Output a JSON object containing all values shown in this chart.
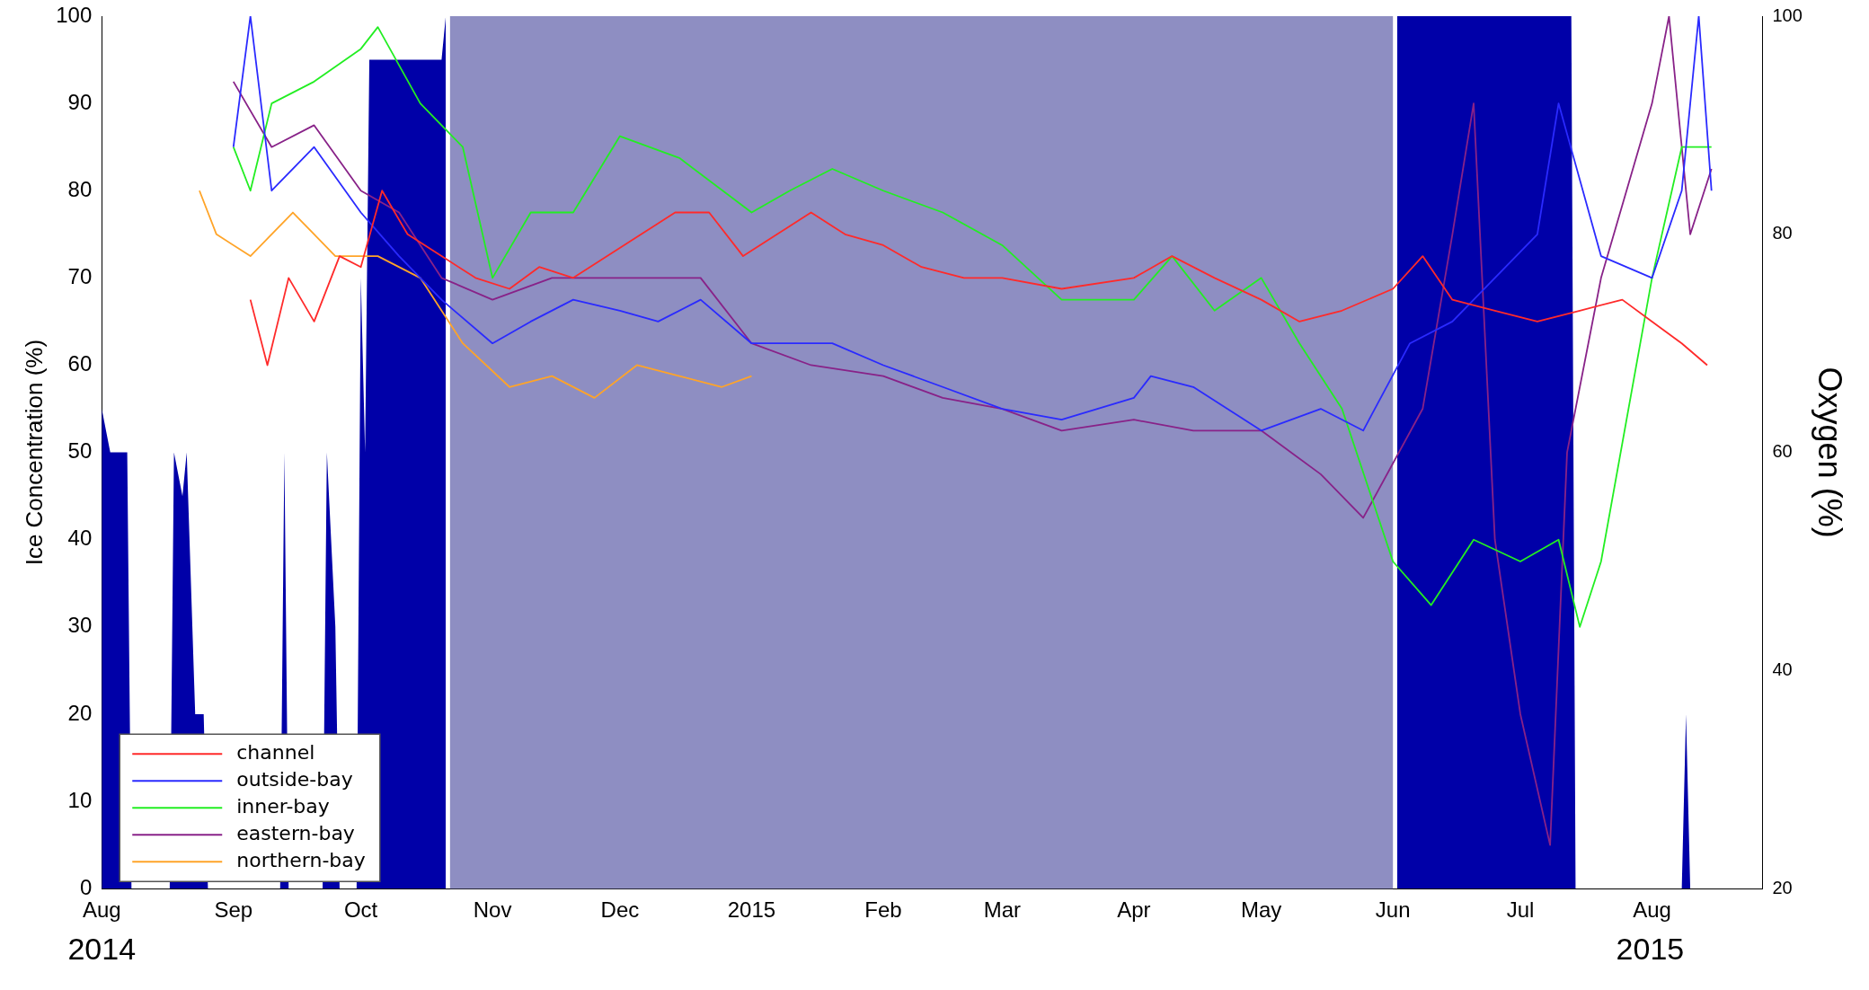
{
  "chart_data": {
    "type": "line",
    "ylabel": "Ice Concentration (%)",
    "y2label": "Oxygen (%)",
    "xlim": [
      "2014-08-01",
      "2015-08-27"
    ],
    "xticks": [
      {
        "value": "2014-08-01",
        "label": "Aug"
      },
      {
        "value": "2014-09-01",
        "label": "Sep"
      },
      {
        "value": "2014-10-01",
        "label": "Oct"
      },
      {
        "value": "2014-11-01",
        "label": "Nov"
      },
      {
        "value": "2014-12-01",
        "label": "Dec"
      },
      {
        "value": "2015-01-01",
        "label": "2015"
      },
      {
        "value": "2015-02-01",
        "label": "Feb"
      },
      {
        "value": "2015-03-01",
        "label": "Mar"
      },
      {
        "value": "2015-04-01",
        "label": "Apr"
      },
      {
        "value": "2015-05-01",
        "label": "May"
      },
      {
        "value": "2015-06-01",
        "label": "Jun"
      },
      {
        "value": "2015-07-01",
        "label": "Jul"
      },
      {
        "value": "2015-08-01",
        "label": "Aug"
      }
    ],
    "ylim": [
      0,
      100
    ],
    "yticks": [
      0,
      10,
      20,
      30,
      40,
      50,
      60,
      70,
      80,
      90,
      100
    ],
    "y2lim": [
      20,
      100
    ],
    "y2ticks": [
      20,
      40,
      60,
      80,
      100
    ],
    "grid": false,
    "legend": "bottom left",
    "marker": "none",
    "line_style": "solid",
    "bands": [
      {
        "axis": "x",
        "from": "2014-10-22",
        "to": "2015-06-01",
        "color": "#8e8ec2"
      }
    ],
    "annotations": [
      "2014",
      "2015"
    ],
    "series": [
      {
        "type": "area",
        "color": "#0000a8",
        "x": [
          "2014-08-01",
          "2014-08-03",
          "2014-08-07",
          "2014-08-08",
          "2014-08-17",
          "2014-08-18",
          "2014-08-20",
          "2014-08-21",
          "2014-08-23",
          "2014-08-25",
          "2014-08-26",
          "2014-09-12",
          "2014-09-13",
          "2014-09-14",
          "2014-09-22",
          "2014-09-23",
          "2014-09-25",
          "2014-09-26",
          "2014-09-30",
          "2014-10-01",
          "2014-10-02",
          "2014-10-03",
          "2014-10-20",
          "2014-10-21",
          "2014-10-22",
          "2015-06-01",
          "2015-06-02",
          "2015-07-13",
          "2015-07-14",
          "2015-08-08",
          "2015-08-09",
          "2015-08-10"
        ],
        "values": [
          55,
          50,
          50,
          0,
          0,
          50,
          45,
          50,
          20,
          20,
          0,
          0,
          50,
          0,
          0,
          50,
          30,
          0,
          0,
          70,
          50,
          95,
          95,
          100,
          null,
          null,
          100,
          100,
          0,
          0,
          20,
          0
        ]
      },
      {
        "name": "channel",
        "axis": "y2",
        "color": "#ff2a2a",
        "x": [
          "2014-09-05",
          "2014-09-09",
          "2014-09-14",
          "2014-09-20",
          "2014-09-26",
          "2014-10-01",
          "2014-10-06",
          "2014-10-12",
          "2014-10-20",
          "2014-10-28",
          "2014-11-05",
          "2014-11-12",
          "2014-11-20",
          "2014-11-28",
          "2014-12-06",
          "2014-12-14",
          "2014-12-22",
          "2014-12-30",
          "2015-01-07",
          "2015-01-15",
          "2015-01-23",
          "2015-02-01",
          "2015-02-10",
          "2015-02-20",
          "2015-03-01",
          "2015-03-15",
          "2015-04-01",
          "2015-04-10",
          "2015-04-20",
          "2015-05-01",
          "2015-05-10",
          "2015-05-20",
          "2015-06-01",
          "2015-06-08",
          "2015-06-15",
          "2015-06-25",
          "2015-07-05",
          "2015-07-15",
          "2015-07-25",
          "2015-08-01",
          "2015-08-08",
          "2015-08-14"
        ],
        "values": [
          74,
          68,
          76,
          72,
          78,
          77,
          84,
          80,
          78,
          76,
          75,
          77,
          76,
          78,
          80,
          82,
          82,
          78,
          80,
          82,
          80,
          79,
          77,
          76,
          76,
          75,
          76,
          78,
          76,
          74,
          72,
          73,
          75,
          78,
          74,
          73,
          72,
          73,
          74,
          72,
          70,
          68
        ]
      },
      {
        "name": "outside-bay",
        "axis": "y2",
        "color": "#2a2aff",
        "x": [
          "2014-09-01",
          "2014-09-05",
          "2014-09-10",
          "2014-09-20",
          "2014-10-01",
          "2014-10-10",
          "2014-10-20",
          "2014-11-01",
          "2014-11-10",
          "2014-11-20",
          "2014-12-01",
          "2014-12-10",
          "2014-12-20",
          "2015-01-01",
          "2015-01-10",
          "2015-01-20",
          "2015-02-01",
          "2015-02-15",
          "2015-03-01",
          "2015-03-15",
          "2015-04-01",
          "2015-04-05",
          "2015-04-15",
          "2015-05-01",
          "2015-05-15",
          "2015-05-25",
          "2015-06-05",
          "2015-06-15",
          "2015-06-25",
          "2015-07-05",
          "2015-07-10",
          "2015-07-20",
          "2015-08-01",
          "2015-08-08",
          "2015-08-12",
          "2015-08-15"
        ],
        "values": [
          88,
          100,
          84,
          88,
          82,
          78,
          74,
          70,
          72,
          74,
          73,
          72,
          74,
          70,
          70,
          70,
          68,
          66,
          64,
          63,
          65,
          67,
          66,
          62,
          64,
          62,
          70,
          72,
          76,
          80,
          92,
          78,
          76,
          84,
          100,
          84
        ]
      },
      {
        "name": "inner-bay",
        "axis": "y2",
        "color": "#22ee22",
        "x": [
          "2014-09-01",
          "2014-09-05",
          "2014-09-10",
          "2014-09-20",
          "2014-10-01",
          "2014-10-05",
          "2014-10-15",
          "2014-10-25",
          "2014-11-01",
          "2014-11-10",
          "2014-11-20",
          "2014-12-01",
          "2014-12-15",
          "2015-01-01",
          "2015-01-10",
          "2015-01-20",
          "2015-02-01",
          "2015-02-15",
          "2015-03-01",
          "2015-03-15",
          "2015-04-01",
          "2015-04-10",
          "2015-04-20",
          "2015-05-01",
          "2015-05-10",
          "2015-05-20",
          "2015-06-01",
          "2015-06-10",
          "2015-06-20",
          "2015-07-01",
          "2015-07-10",
          "2015-07-15",
          "2015-07-20",
          "2015-08-01",
          "2015-08-08",
          "2015-08-15"
        ],
        "values": [
          88,
          84,
          92,
          94,
          97,
          99,
          92,
          88,
          76,
          82,
          82,
          89,
          87,
          82,
          84,
          86,
          84,
          82,
          79,
          74,
          74,
          78,
          73,
          76,
          70,
          64,
          50,
          46,
          52,
          50,
          52,
          44,
          50,
          76,
          88,
          88
        ]
      },
      {
        "name": "eastern-bay",
        "axis": "y2",
        "color": "#882288",
        "x": [
          "2014-09-01",
          "2014-09-10",
          "2014-09-20",
          "2014-10-01",
          "2014-10-10",
          "2014-10-20",
          "2014-11-01",
          "2014-11-15",
          "2014-12-01",
          "2014-12-20",
          "2015-01-01",
          "2015-01-15",
          "2015-02-01",
          "2015-02-15",
          "2015-03-01",
          "2015-03-15",
          "2015-04-01",
          "2015-04-15",
          "2015-05-01",
          "2015-05-15",
          "2015-05-25",
          "2015-06-01",
          "2015-06-08",
          "2015-06-15",
          "2015-06-20",
          "2015-06-25",
          "2015-07-01",
          "2015-07-08",
          "2015-07-12",
          "2015-07-20",
          "2015-08-01",
          "2015-08-05",
          "2015-08-10",
          "2015-08-15"
        ],
        "values": [
          94,
          88,
          90,
          84,
          82,
          76,
          74,
          76,
          76,
          76,
          70,
          68,
          67,
          65,
          64,
          62,
          63,
          62,
          62,
          58,
          54,
          59,
          64,
          80,
          92,
          52,
          36,
          24,
          60,
          76,
          92,
          100,
          80,
          86
        ]
      },
      {
        "name": "northern-bay",
        "axis": "y2",
        "color": "#ffa428",
        "x": [
          "2014-08-24",
          "2014-08-28",
          "2014-09-05",
          "2014-09-15",
          "2014-09-25",
          "2014-10-05",
          "2014-10-15",
          "2014-10-25",
          "2014-11-05",
          "2014-11-15",
          "2014-11-25",
          "2014-12-05",
          "2014-12-15",
          "2014-12-25",
          "2015-01-01"
        ],
        "values": [
          84,
          80,
          78,
          82,
          78,
          78,
          76,
          70,
          66,
          67,
          65,
          68,
          67,
          66,
          67
        ]
      }
    ]
  }
}
